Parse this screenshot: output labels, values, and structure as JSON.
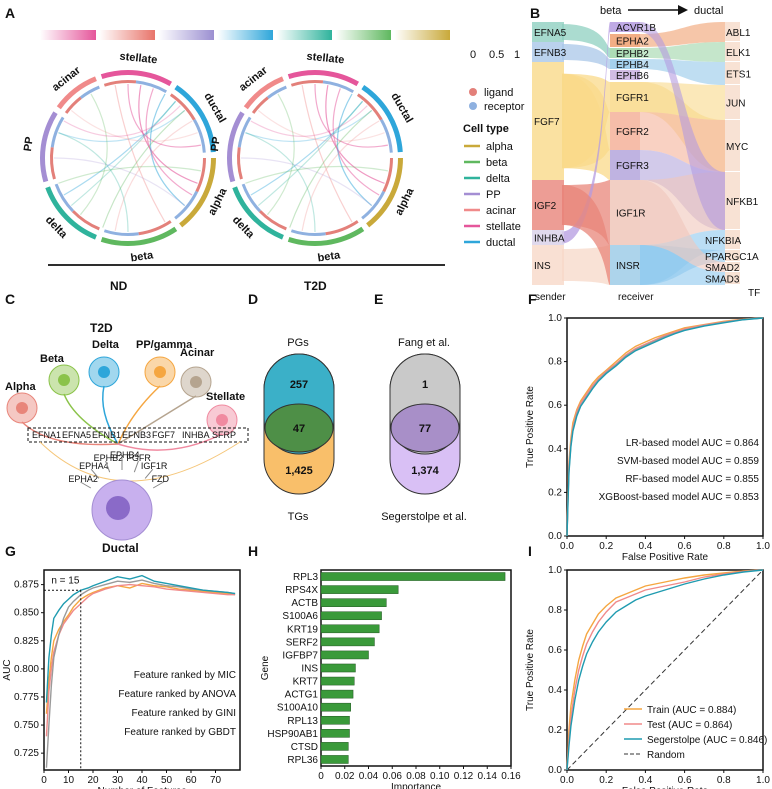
{
  "panel_labels": [
    "A",
    "B",
    "C",
    "D",
    "E",
    "F",
    "G",
    "H",
    "I"
  ],
  "panelA": {
    "gradient_colors": [
      "#e5569b",
      "#e8746a",
      "#9b8fd1",
      "#2ea6da",
      "#2fb39c",
      "#5fb85f",
      "#c9a93a"
    ],
    "scale_ticks": [
      "0",
      "0.5",
      "1"
    ],
    "groups": [
      {
        "name": "ND"
      },
      {
        "name": "T2D"
      }
    ],
    "sectors": [
      "stellate",
      "ductal",
      "alpha",
      "beta",
      "delta",
      "PP",
      "acinar"
    ],
    "legend": {
      "ligand": "ligand",
      "receptor": "receptor",
      "ligand_color": "#e3807a",
      "receptor_color": "#8fb1e0",
      "cell_type_title": "Cell type",
      "cell_types": [
        {
          "name": "alpha",
          "color": "#c9a93a"
        },
        {
          "name": "beta",
          "color": "#5fb85f"
        },
        {
          "name": "delta",
          "color": "#2fb39c"
        },
        {
          "name": "PP",
          "color": "#a48ed3"
        },
        {
          "name": "acinar",
          "color": "#f08a8a"
        },
        {
          "name": "stellate",
          "color": "#e5569b"
        },
        {
          "name": "ductal",
          "color": "#2ea6da"
        }
      ]
    }
  },
  "panelB": {
    "top_beta": "beta",
    "top_ductal": "ductal",
    "sender": "sender",
    "receiver": "receiver",
    "tf": "TF",
    "ligands": [
      "EFNA5",
      "EFNB3",
      "FGF7",
      "IGF2",
      "INHBA",
      "INS"
    ],
    "receptors": [
      "ACVR1B",
      "EPHA2",
      "EPHB2",
      "EPHB4",
      "EPHB6",
      "FGFR1",
      "FGFR2",
      "FGFR3",
      "IGF1R",
      "INSR"
    ],
    "tfs": [
      "ABL1",
      "ELK1",
      "ETS1",
      "JUN",
      "MYC",
      "NFKB1",
      "NFKBIA",
      "PPARGC1A",
      "SMAD2",
      "SMAD3"
    ]
  },
  "panelC": {
    "title": "T2D",
    "cells": [
      "Beta",
      "Delta",
      "PP/gamma",
      "Acinar",
      "Alpha",
      "Stellate",
      "Ductal"
    ],
    "ligand_row": [
      "EFNA1",
      "EFNA5",
      "EFNB1",
      "EFNB3",
      "FGF7",
      "INHBA",
      "SFRP"
    ],
    "receptor_labels": [
      "EPHA2",
      "EPHA4",
      "EPHB2",
      "EPHB4",
      "FGFR",
      "IGF1R",
      "FZD"
    ]
  },
  "panelD": {
    "top": "PGs",
    "bottom": "TGs",
    "top_only": "257",
    "overlap": "47",
    "bottom_only": "1,425"
  },
  "panelE": {
    "top": "Fang et al.",
    "bottom": "Segerstolpe et al.",
    "top_only": "1",
    "overlap": "77",
    "bottom_only": "1,374"
  },
  "chart_data": [
    {
      "panel": "F",
      "type": "line",
      "xlabel": "False Positive Rate",
      "ylabel": "True Positive Rate",
      "xlim": [
        0,
        1
      ],
      "ylim": [
        0,
        1
      ],
      "xticks": [
        "0.0",
        "0.2",
        "0.4",
        "0.6",
        "0.8",
        "1.0"
      ],
      "yticks": [
        "0.0",
        "0.2",
        "0.4",
        "0.6",
        "0.8",
        "1.0"
      ],
      "series": [
        {
          "name": "LR-based model AUC = 0.864",
          "color": "#f5a640",
          "x": [
            0,
            0.005,
            0.01,
            0.02,
            0.03,
            0.05,
            0.07,
            0.1,
            0.13,
            0.16,
            0.2,
            0.25,
            0.3,
            0.35,
            0.4,
            0.45,
            0.5,
            0.55,
            0.6,
            0.7,
            0.8,
            0.9,
            1.0
          ],
          "y": [
            0,
            0.2,
            0.34,
            0.45,
            0.52,
            0.58,
            0.62,
            0.66,
            0.7,
            0.73,
            0.76,
            0.8,
            0.84,
            0.87,
            0.89,
            0.91,
            0.925,
            0.94,
            0.955,
            0.97,
            0.985,
            0.995,
            1.0
          ]
        },
        {
          "name": "SVM-based model AUC = 0.859",
          "color": "#f08a8a",
          "x": [
            0,
            0.005,
            0.01,
            0.02,
            0.03,
            0.05,
            0.07,
            0.1,
            0.13,
            0.16,
            0.2,
            0.25,
            0.3,
            0.35,
            0.4,
            0.45,
            0.5,
            0.55,
            0.6,
            0.7,
            0.8,
            0.9,
            1.0
          ],
          "y": [
            0,
            0.18,
            0.32,
            0.43,
            0.5,
            0.57,
            0.61,
            0.65,
            0.69,
            0.72,
            0.755,
            0.79,
            0.83,
            0.86,
            0.88,
            0.9,
            0.92,
            0.935,
            0.95,
            0.968,
            0.982,
            0.994,
            1.0
          ]
        },
        {
          "name": "RF-based model AUC = 0.855",
          "color": "#9a9a9a",
          "x": [
            0,
            0.005,
            0.01,
            0.02,
            0.03,
            0.05,
            0.07,
            0.1,
            0.13,
            0.16,
            0.2,
            0.25,
            0.3,
            0.35,
            0.4,
            0.45,
            0.5,
            0.55,
            0.6,
            0.7,
            0.8,
            0.9,
            1.0
          ],
          "y": [
            0,
            0.16,
            0.3,
            0.42,
            0.49,
            0.56,
            0.6,
            0.64,
            0.68,
            0.715,
            0.75,
            0.785,
            0.825,
            0.855,
            0.875,
            0.895,
            0.915,
            0.93,
            0.945,
            0.965,
            0.98,
            0.993,
            1.0
          ]
        },
        {
          "name": "XGBoost-based model AUC = 0.853",
          "color": "#1f9bb0",
          "x": [
            0,
            0.005,
            0.01,
            0.02,
            0.03,
            0.05,
            0.07,
            0.1,
            0.13,
            0.16,
            0.2,
            0.25,
            0.3,
            0.35,
            0.4,
            0.45,
            0.5,
            0.55,
            0.6,
            0.7,
            0.8,
            0.9,
            1.0
          ],
          "y": [
            0,
            0.15,
            0.29,
            0.41,
            0.48,
            0.55,
            0.595,
            0.635,
            0.675,
            0.71,
            0.745,
            0.78,
            0.82,
            0.85,
            0.87,
            0.89,
            0.91,
            0.928,
            0.943,
            0.963,
            0.978,
            0.992,
            1.0
          ]
        }
      ]
    },
    {
      "panel": "G",
      "type": "line",
      "xlabel": "Number of Features",
      "ylabel": "AUC",
      "xlim": [
        0,
        80
      ],
      "ylim": [
        0.71,
        0.888
      ],
      "xticks": [
        0,
        10,
        20,
        30,
        40,
        50,
        60,
        70
      ],
      "yticks": [
        0.725,
        0.75,
        0.775,
        0.8,
        0.825,
        0.85,
        0.875
      ],
      "annotation": "n = 15",
      "annotation_x": 15,
      "annotation_y": 0.87,
      "series": [
        {
          "name": "Feature ranked by MIC",
          "color": "#f5a640",
          "x": [
            1,
            2,
            3,
            4,
            6,
            8,
            10,
            12,
            15,
            18,
            20,
            25,
            30,
            35,
            40,
            45,
            50,
            55,
            60,
            65,
            70,
            75,
            78
          ],
          "y": [
            0.76,
            0.79,
            0.81,
            0.825,
            0.835,
            0.842,
            0.848,
            0.855,
            0.862,
            0.866,
            0.868,
            0.872,
            0.874,
            0.872,
            0.876,
            0.874,
            0.873,
            0.871,
            0.87,
            0.869,
            0.868,
            0.867,
            0.866
          ]
        },
        {
          "name": "Feature ranked by ANOVA",
          "color": "#f08a8a",
          "x": [
            1,
            2,
            3,
            4,
            6,
            8,
            10,
            12,
            15,
            18,
            20,
            25,
            30,
            35,
            40,
            45,
            50,
            55,
            60,
            65,
            70,
            75,
            78
          ],
          "y": [
            0.74,
            0.78,
            0.8,
            0.815,
            0.83,
            0.84,
            0.846,
            0.852,
            0.858,
            0.864,
            0.867,
            0.871,
            0.874,
            0.875,
            0.874,
            0.873,
            0.871,
            0.87,
            0.869,
            0.868,
            0.867,
            0.866,
            0.866
          ]
        },
        {
          "name": "Feature ranked by GINI",
          "color": "#9a9a9a",
          "x": [
            1,
            2,
            3,
            4,
            6,
            8,
            10,
            12,
            15,
            18,
            20,
            25,
            30,
            35,
            40,
            45,
            50,
            55,
            60,
            65,
            70,
            75,
            78
          ],
          "y": [
            0.712,
            0.75,
            0.785,
            0.81,
            0.83,
            0.845,
            0.855,
            0.86,
            0.866,
            0.87,
            0.872,
            0.875,
            0.878,
            0.877,
            0.879,
            0.876,
            0.874,
            0.873,
            0.871,
            0.87,
            0.869,
            0.868,
            0.867
          ]
        },
        {
          "name": "Feature ranked by GBDT",
          "color": "#1f9bb0",
          "x": [
            1,
            2,
            3,
            4,
            6,
            8,
            10,
            12,
            15,
            18,
            20,
            25,
            30,
            35,
            40,
            45,
            50,
            55,
            60,
            65,
            70,
            75,
            78
          ],
          "y": [
            0.77,
            0.81,
            0.83,
            0.845,
            0.852,
            0.858,
            0.862,
            0.866,
            0.87,
            0.872,
            0.874,
            0.878,
            0.882,
            0.88,
            0.883,
            0.878,
            0.876,
            0.874,
            0.872,
            0.87,
            0.869,
            0.868,
            0.867
          ]
        }
      ]
    },
    {
      "panel": "H",
      "type": "bar",
      "xlabel": "Importance",
      "ylabel": "Gene",
      "xlim": [
        0,
        0.16
      ],
      "xticks": [
        "0",
        "0.02",
        "0.04",
        "0.06",
        "0.08",
        "0.10",
        "0.12",
        "0.14",
        "0.16"
      ],
      "color": "#3a9a3a",
      "categories": [
        "RPL3",
        "RPS4X",
        "ACTB",
        "S100A6",
        "KRT19",
        "SERF2",
        "IGFBP7",
        "INS",
        "KRT7",
        "ACTG1",
        "S100A10",
        "RPL13",
        "HSP90AB1",
        "CTSD",
        "RPL36"
      ],
      "values": [
        0.155,
        0.065,
        0.055,
        0.051,
        0.049,
        0.045,
        0.04,
        0.029,
        0.028,
        0.027,
        0.025,
        0.024,
        0.024,
        0.023,
        0.023
      ]
    },
    {
      "panel": "I",
      "type": "line",
      "xlabel": "False Positive Rate",
      "ylabel": "True Positive Rate",
      "xlim": [
        0,
        1
      ],
      "ylim": [
        0,
        1
      ],
      "xticks": [
        "0.0",
        "0.2",
        "0.4",
        "0.6",
        "0.8",
        "1.0"
      ],
      "yticks": [
        "0.0",
        "0.2",
        "0.4",
        "0.6",
        "0.8",
        "1.0"
      ],
      "series": [
        {
          "name": "Train (AUC = 0.884)",
          "color": "#f5a640",
          "x": [
            0,
            0.01,
            0.02,
            0.04,
            0.06,
            0.08,
            0.1,
            0.13,
            0.16,
            0.2,
            0.25,
            0.3,
            0.35,
            0.4,
            0.5,
            0.6,
            0.7,
            0.8,
            0.9,
            1.0
          ],
          "y": [
            0,
            0.2,
            0.32,
            0.45,
            0.55,
            0.62,
            0.68,
            0.73,
            0.78,
            0.82,
            0.86,
            0.88,
            0.9,
            0.92,
            0.94,
            0.96,
            0.975,
            0.985,
            0.995,
            1.0
          ]
        },
        {
          "name": "Test (AUC = 0.864)",
          "color": "#f08a8a",
          "x": [
            0,
            0.01,
            0.02,
            0.04,
            0.06,
            0.08,
            0.1,
            0.13,
            0.16,
            0.2,
            0.25,
            0.3,
            0.35,
            0.4,
            0.5,
            0.6,
            0.7,
            0.8,
            0.9,
            1.0
          ],
          "y": [
            0,
            0.15,
            0.26,
            0.4,
            0.5,
            0.57,
            0.63,
            0.69,
            0.74,
            0.79,
            0.84,
            0.86,
            0.88,
            0.9,
            0.92,
            0.94,
            0.965,
            0.98,
            0.993,
            1.0
          ]
        },
        {
          "name": "Segerstolpe (AUC = 0.846)",
          "color": "#1f9bb0",
          "x": [
            0,
            0.01,
            0.02,
            0.04,
            0.06,
            0.08,
            0.1,
            0.13,
            0.16,
            0.2,
            0.25,
            0.3,
            0.35,
            0.4,
            0.5,
            0.6,
            0.7,
            0.8,
            0.9,
            1.0
          ],
          "y": [
            0,
            0.12,
            0.22,
            0.35,
            0.45,
            0.52,
            0.58,
            0.64,
            0.69,
            0.74,
            0.79,
            0.82,
            0.85,
            0.87,
            0.9,
            0.93,
            0.955,
            0.975,
            0.99,
            1.0
          ]
        }
      ],
      "random_label": "Random"
    }
  ]
}
